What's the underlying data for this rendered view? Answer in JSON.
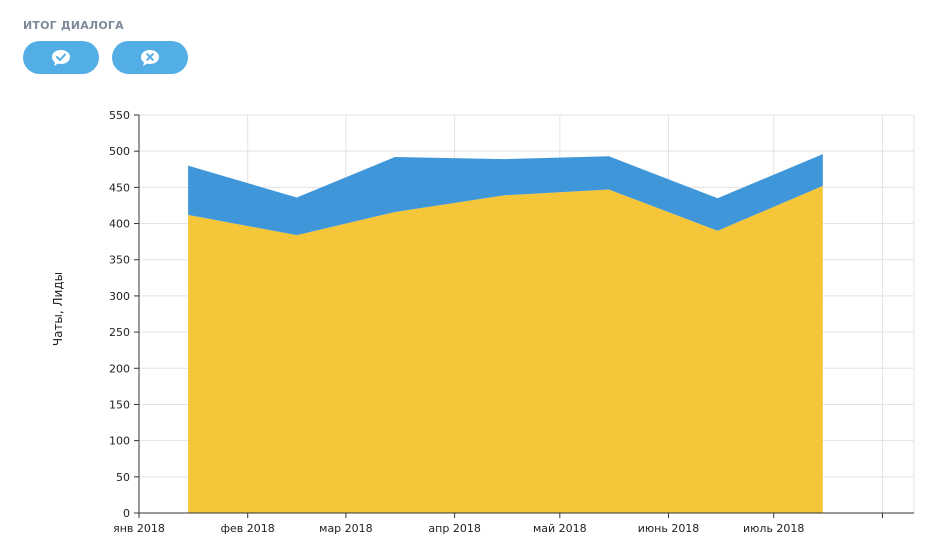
{
  "section": {
    "title": "ИТОГ ДИАЛОГА"
  },
  "buttons": [
    {
      "name": "success-chat-button",
      "icon": "chat-check-icon",
      "color": "#53aee6"
    },
    {
      "name": "failed-chat-button",
      "icon": "chat-cross-icon",
      "color": "#53aee6"
    }
  ],
  "chart_data": {
    "type": "area",
    "stacked": true,
    "ylabel": "Чаты, Лиды",
    "xlabel": "",
    "ylim": [
      0,
      550
    ],
    "y_ticks": [
      0,
      50,
      100,
      150,
      200,
      250,
      300,
      350,
      400,
      450,
      500,
      550
    ],
    "x_ticks": [
      "янв 2018",
      "фев 2018",
      "мар 2018",
      "апр 2018",
      "май 2018",
      "июнь 2018",
      "июль 2018"
    ],
    "grid": true,
    "x": [
      "2018-01-15",
      "2018-02-15",
      "2018-03-15",
      "2018-04-15",
      "2018-05-15",
      "2018-06-15",
      "2018-07-15"
    ],
    "series": [
      {
        "values": [
          412,
          384,
          416,
          439,
          447,
          390,
          452
        ],
        "color": "#f5c53a"
      },
      {
        "values": [
          68,
          52,
          76,
          50,
          46,
          45,
          44
        ],
        "color": "#3f96d8"
      }
    ]
  }
}
